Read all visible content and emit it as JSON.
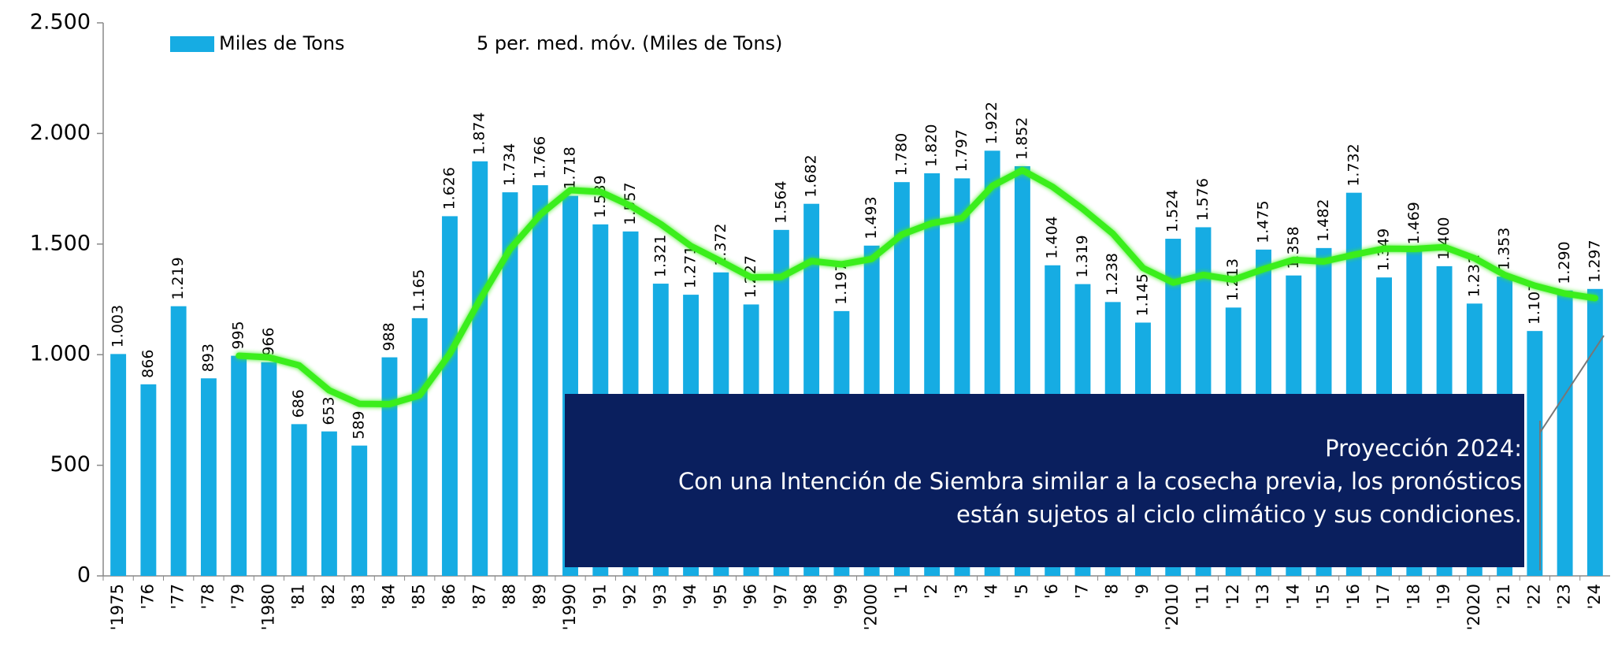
{
  "chart_data": {
    "type": "bar",
    "categories": [
      "'1975",
      "'76",
      "'77",
      "'78",
      "'79",
      "'1980",
      "'81",
      "'82",
      "'83",
      "'84",
      "'85",
      "'86",
      "'87",
      "'88",
      "'89",
      "'1990",
      "'91",
      "'92",
      "'93",
      "'94",
      "'95",
      "'96",
      "'97",
      "'98",
      "'99",
      "'2000",
      "'1",
      "'2",
      "'3",
      "'4",
      "'5",
      "'6",
      "'7",
      "'8",
      "'9",
      "'2010",
      "'11",
      "'12",
      "'13",
      "'14",
      "'15",
      "'16",
      "'17",
      "'18",
      "'19",
      "'2020",
      "'21",
      "'22",
      "'23",
      "'24"
    ],
    "series": [
      {
        "name": "Miles de Tons",
        "type": "bar",
        "color": "#16ace3",
        "values": [
          1003,
          866,
          1219,
          893,
          995,
          966,
          686,
          653,
          589,
          988,
          1165,
          1626,
          1874,
          1734,
          1766,
          1718,
          1589,
          1557,
          1321,
          1271,
          1372,
          1227,
          1564,
          1682,
          1197,
          1493,
          1780,
          1820,
          1797,
          1922,
          1852,
          1404,
          1319,
          1238,
          1145,
          1524,
          1576,
          1213,
          1475,
          1358,
          1482,
          1732,
          1349,
          1469,
          1400,
          1231,
          1353,
          1107,
          1290,
          1297
        ],
        "value_labels": [
          "1.003",
          "866",
          "1.219",
          "893",
          "995",
          "966",
          "686",
          "653",
          "589",
          "988",
          "1.165",
          "1.626",
          "1.874",
          "1.734",
          "1.766",
          "1.718",
          "1.589",
          "1.557",
          "1.321",
          "1.271",
          "1.372",
          "1.227",
          "1.564",
          "1.682",
          "1.197",
          "1.493",
          "1.780",
          "1.820",
          "1.797",
          "1.922",
          "1.852",
          "1.404",
          "1.319",
          "1.238",
          "1.145",
          "1.524",
          "1.576",
          "1.213",
          "1.475",
          "1.358",
          "1.482",
          "1.732",
          "1.349",
          "1.469",
          "1.400",
          "1.231",
          "1.353",
          "1.107",
          "1.290",
          "1.297"
        ]
      },
      {
        "name": "5 per. med. móv. (Miles de Tons)",
        "type": "line",
        "color": "#3aee1e",
        "values": [
          null,
          null,
          null,
          null,
          995.2,
          987.8,
          951.8,
          838.6,
          777.8,
          776.4,
          816.2,
          1004.2,
          1248.4,
          1477.4,
          1633,
          1743.6,
          1736.2,
          1672.8,
          1590.2,
          1491.2,
          1422,
          1349.6,
          1351,
          1423.2,
          1408.4,
          1432.6,
          1543.2,
          1594.4,
          1617.4,
          1762.4,
          1834.2,
          1759,
          1658.8,
          1547,
          1391.6,
          1326,
          1360.4,
          1339.2,
          1386.6,
          1429.2,
          1420.8,
          1452,
          1479.2,
          1478,
          1486.4,
          1436.2,
          1360.4,
          1312,
          1276.2,
          1255.6
        ]
      }
    ],
    "ylim": [
      0,
      2500
    ],
    "yticks": [
      0,
      500,
      {
        "value": 1000,
        "label": "1.000"
      },
      {
        "value": 1500,
        "label": "1.500"
      },
      {
        "value": 2000,
        "label": "2.000"
      },
      {
        "value": 2500,
        "label": "2.500"
      }
    ],
    "grid": false,
    "legend": "top",
    "annotation": [
      "Proyección 2024:",
      "Con una Intención de Siembra similar a la cosecha previa, los pronósticos",
      "están sujetos al ciclo climático y sus condiciones."
    ]
  }
}
